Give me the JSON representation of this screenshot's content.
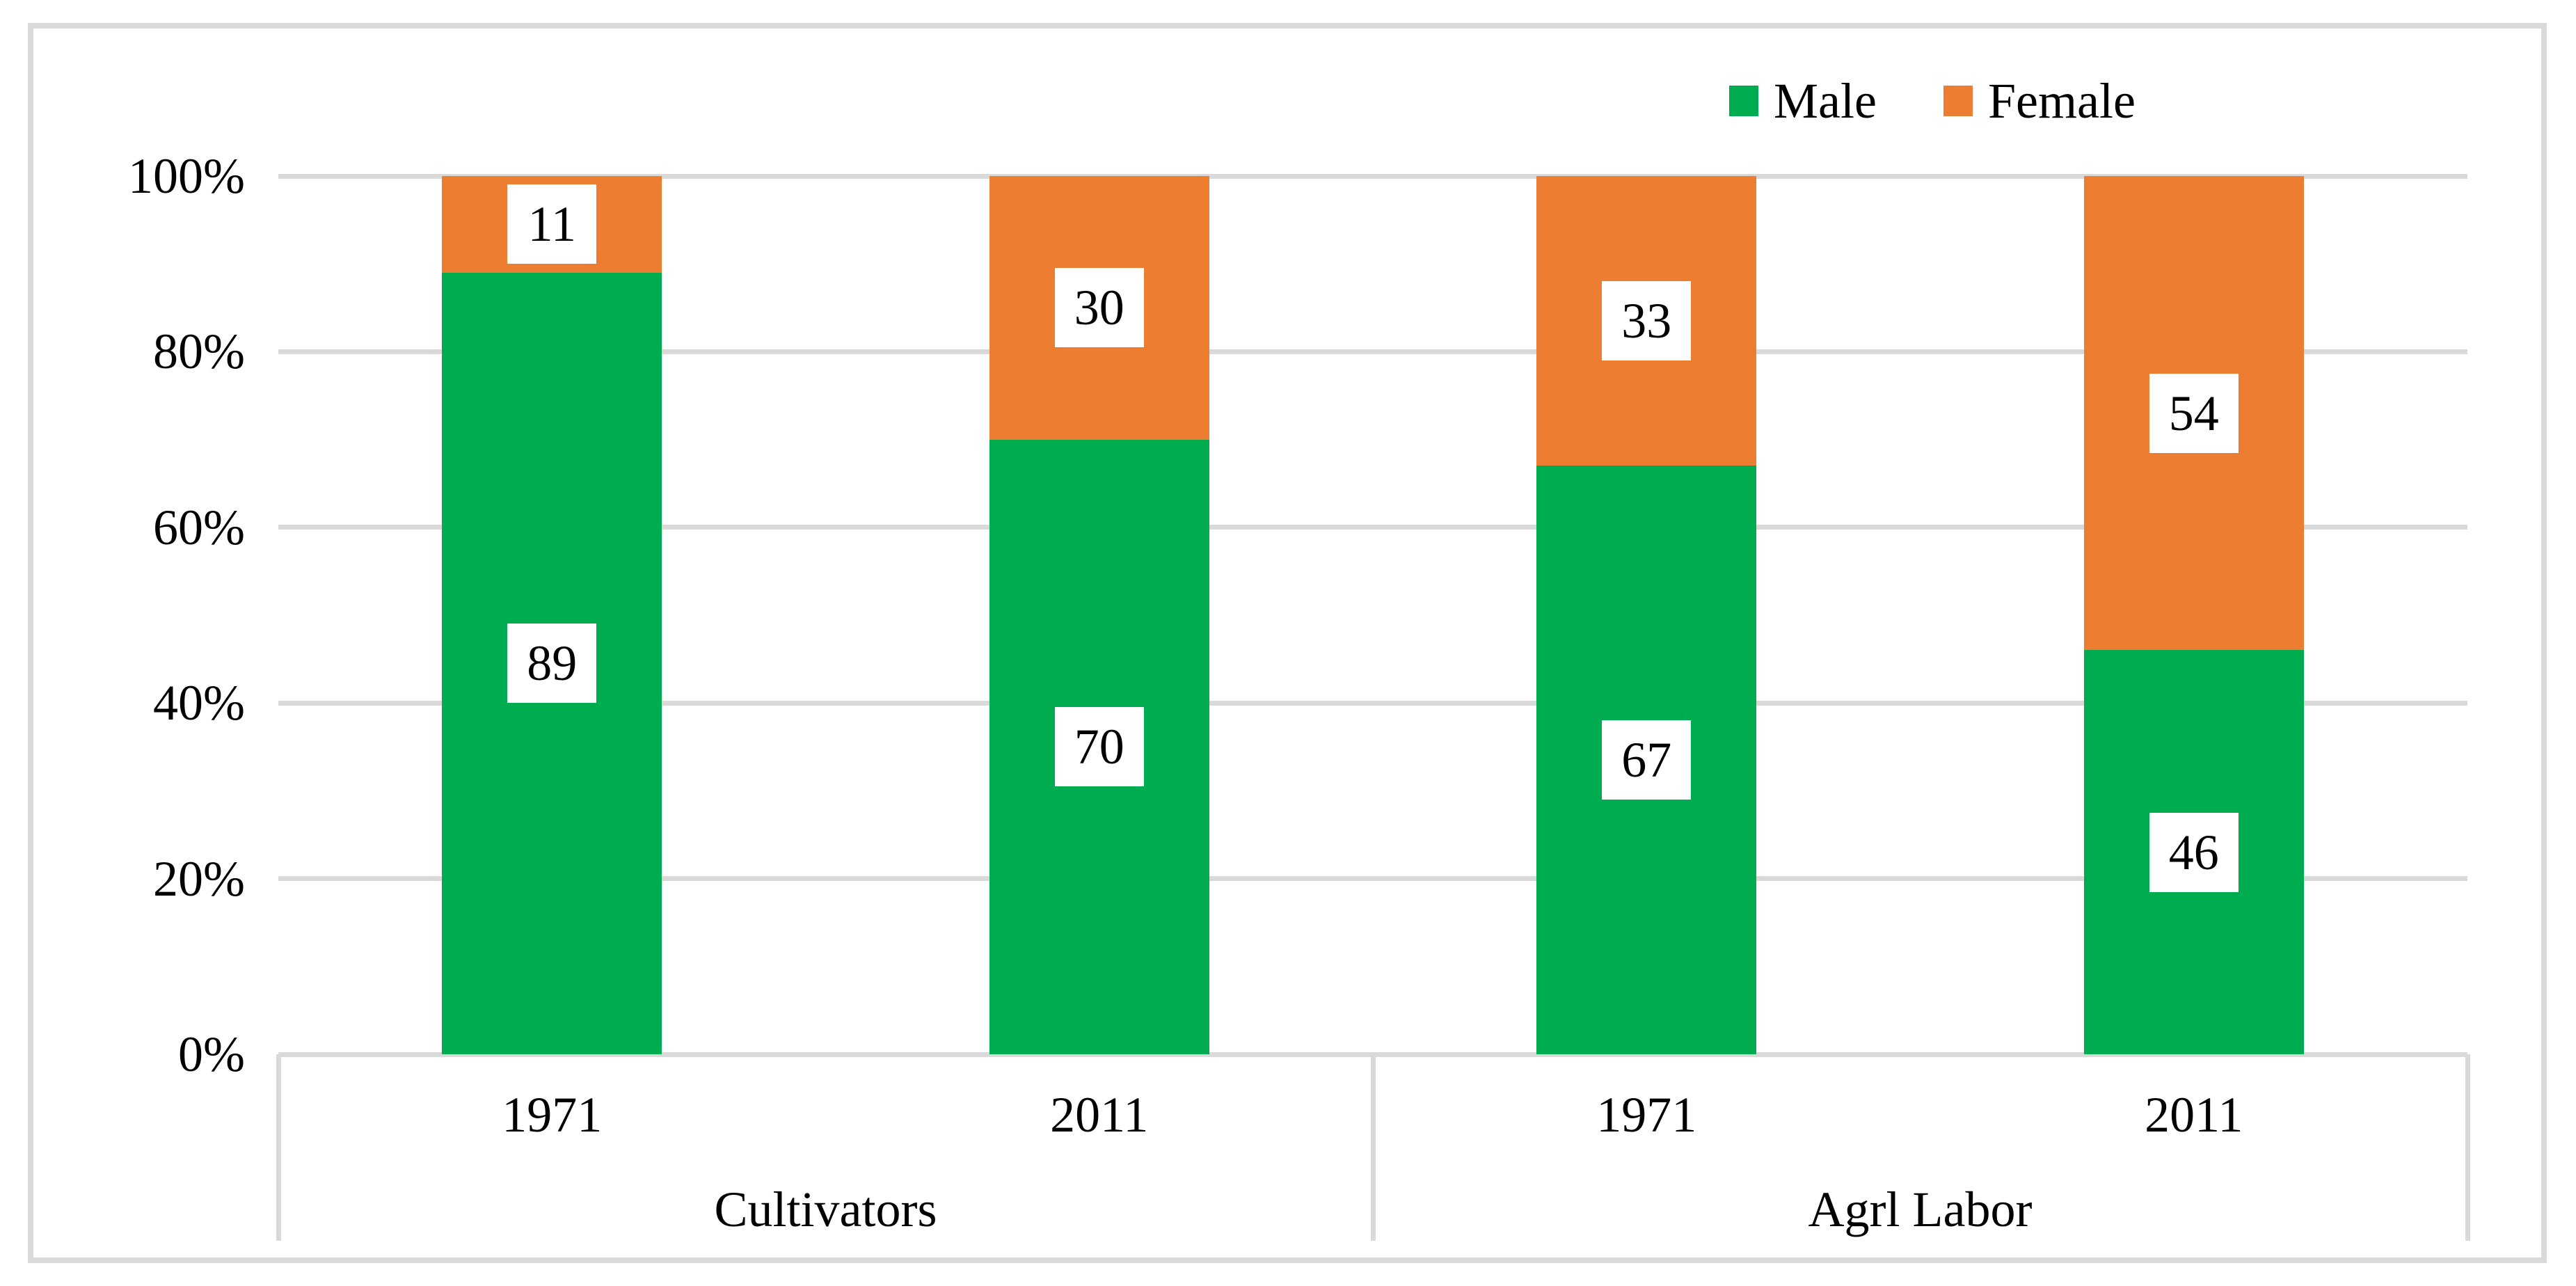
{
  "chart_data": {
    "type": "bar",
    "subtype": "100-percent-stacked-column",
    "title": "",
    "categories": [
      {
        "year": "1971",
        "group": "Cultivators"
      },
      {
        "year": "2011",
        "group": "Cultivators"
      },
      {
        "year": "1971",
        "group": "Agrl Labor"
      },
      {
        "year": "2011",
        "group": "Agrl Labor"
      }
    ],
    "group_labels": [
      "Cultivators",
      "Agrl Labor"
    ],
    "series": [
      {
        "name": "Male",
        "color": "#00AC50",
        "values": [
          89,
          70,
          67,
          46
        ]
      },
      {
        "name": "Female",
        "color": "#ED7D31",
        "values": [
          11,
          30,
          33,
          54
        ]
      }
    ],
    "data_label_values": {
      "Male": [
        "89",
        "70",
        "67",
        "46"
      ],
      "Female": [
        "11",
        "30",
        "33",
        "54"
      ]
    },
    "ylim": [
      0,
      100
    ],
    "y_ticks": [
      0,
      20,
      40,
      60,
      80,
      100
    ],
    "y_tick_labels": [
      "0%",
      "20%",
      "40%",
      "60%",
      "80%",
      "100%"
    ],
    "grid": true,
    "legend_position": "top-right",
    "data_labels_style": "centered white boxes with black text"
  },
  "legend": {
    "items": [
      {
        "label": "Male",
        "color": "#00AC50"
      },
      {
        "label": "Female",
        "color": "#ED7D31"
      }
    ]
  },
  "colors": {
    "male": "#00AC50",
    "female": "#ED7D31",
    "gridline": "#D9D9D9",
    "axis_line": "#D9D9D9",
    "frame_border": "#D9D9D9",
    "label_box_bg": "#FFFFFF",
    "text": "#000000",
    "background": "#FFFFFF"
  }
}
